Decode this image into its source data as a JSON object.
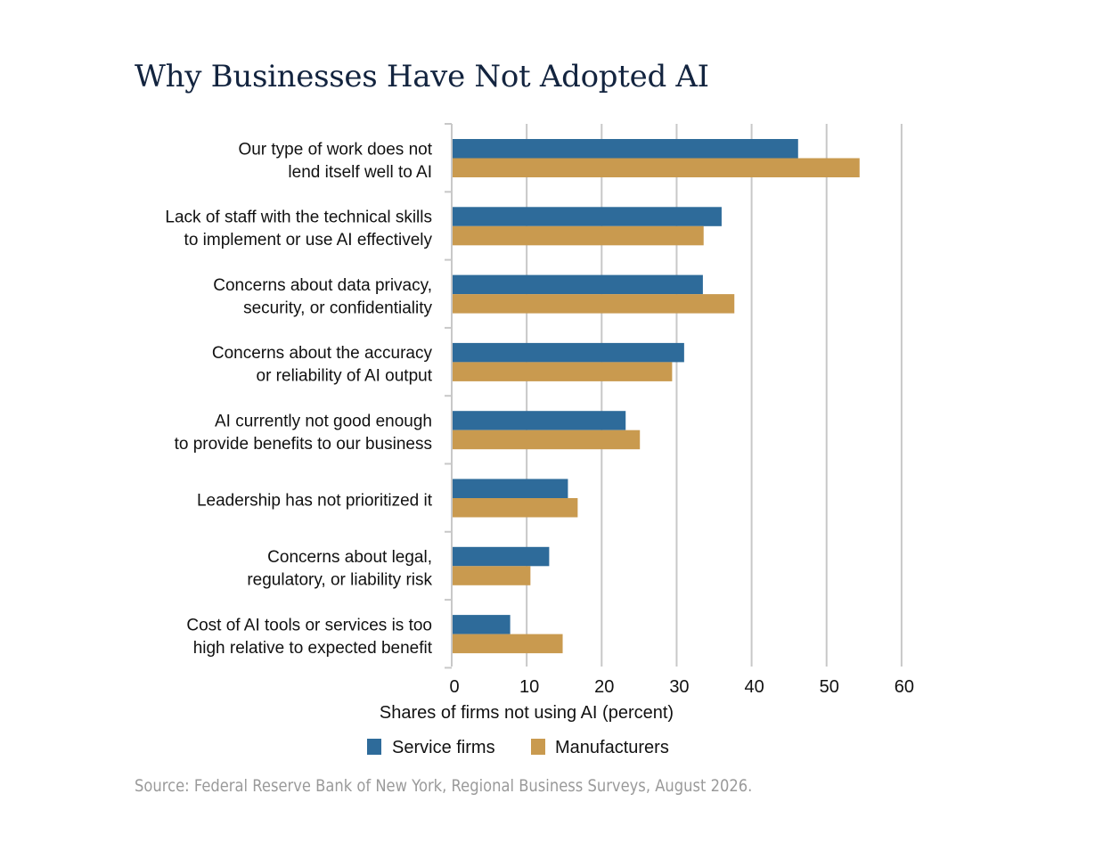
{
  "title": "Why Businesses Have Not Adopted AI",
  "source": "Source: Federal Reserve Bank of New York, Regional Business Surveys, August 2026.",
  "colors": {
    "service": "#2e6b9a",
    "manufacturers": "#c99a4f",
    "grid": "#c8c8c8",
    "title": "#13243f"
  },
  "chart_data": {
    "type": "bar",
    "orientation": "horizontal",
    "title": "Why Businesses Have Not Adopted AI",
    "xlabel": "Shares of firms not using AI (percent)",
    "ylabel": "",
    "xlim": [
      0,
      60
    ],
    "xticks": [
      0,
      10,
      20,
      30,
      40,
      50,
      60
    ],
    "grid": "vertical",
    "legend": "bottom",
    "categories": [
      [
        "Our type of work does not",
        "lend itself well to AI"
      ],
      [
        "Lack of staff with the technical skills",
        "to implement or use AI effectively"
      ],
      [
        "Concerns about data privacy,",
        "security, or confidentiality"
      ],
      [
        "Concerns about the accuracy",
        "or reliability of AI output"
      ],
      [
        "AI currently not good enough",
        "to provide benefits to our business"
      ],
      [
        "Leadership has not prioritized it"
      ],
      [
        "Concerns about legal,",
        "regulatory, or liability risk"
      ],
      [
        "Cost of AI tools or services is too",
        "high relative to expected benefit"
      ]
    ],
    "series": [
      {
        "name": "Service firms",
        "color": "#2e6b9a",
        "values": [
          46.2,
          36,
          33.5,
          31,
          23.2,
          15.5,
          13,
          7.8
        ]
      },
      {
        "name": "Manufacturers",
        "color": "#c99a4f",
        "values": [
          54.4,
          33.6,
          37.7,
          29.4,
          25.1,
          16.8,
          10.5,
          14.8
        ]
      }
    ]
  }
}
